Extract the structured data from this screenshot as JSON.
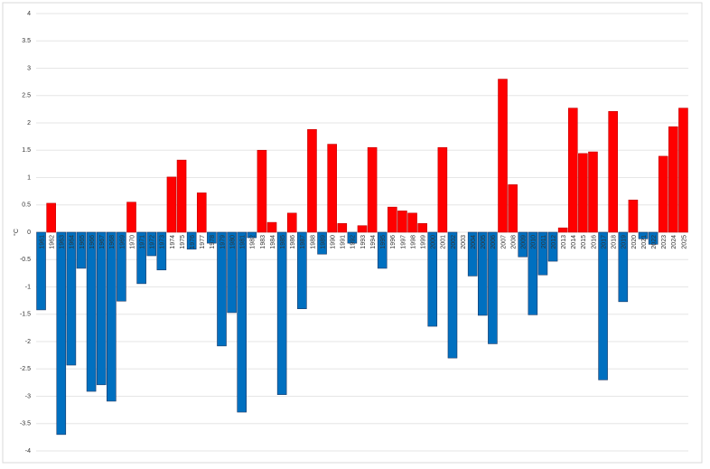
{
  "chart_data": {
    "type": "bar",
    "y_label": "°C",
    "categories": [
      "1961",
      "1962",
      "1963",
      "1964",
      "1965",
      "1966",
      "1967",
      "1968",
      "1969",
      "1970",
      "1971",
      "1972",
      "1973",
      "1974",
      "1975",
      "1976",
      "1977",
      "1978",
      "1979",
      "1980",
      "1981",
      "1982",
      "1983",
      "1984",
      "1985",
      "1986",
      "1987",
      "1988",
      "1989",
      "1990",
      "1991",
      "1992",
      "1993",
      "1994",
      "1995",
      "1996",
      "1997",
      "1998",
      "1999",
      "2000",
      "2001",
      "2002",
      "2003",
      "2004",
      "2005",
      "2006",
      "2007",
      "2008",
      "2009",
      "2010",
      "2011",
      "2012",
      "2013",
      "2014",
      "2015",
      "2016",
      "2017",
      "2018",
      "2019",
      "2020",
      "2021",
      "2022",
      "2023",
      "2024",
      "2025"
    ],
    "values": [
      -1.42,
      0.53,
      -3.7,
      -2.43,
      -0.66,
      -2.91,
      -2.79,
      -3.09,
      -1.26,
      0.55,
      -0.94,
      -0.43,
      -0.69,
      1.01,
      1.32,
      -0.31,
      0.72,
      -0.2,
      -2.08,
      -1.47,
      -3.29,
      -0.1,
      1.5,
      0.18,
      -2.97,
      0.35,
      -1.4,
      1.88,
      -0.4,
      1.61,
      0.16,
      -0.2,
      0.12,
      1.55,
      -0.66,
      0.46,
      0.39,
      0.35,
      0.16,
      -1.72,
      1.55,
      -2.3,
      null,
      -0.8,
      -1.52,
      -2.04,
      2.8,
      0.87,
      -0.45,
      -1.51,
      -0.78,
      -0.53,
      0.08,
      2.27,
      1.44,
      1.47,
      -2.7,
      2.21,
      -1.27,
      0.59,
      -0.12,
      -0.22,
      1.39,
      1.93,
      2.27
    ],
    "positive_color": "#ff0000",
    "negative_color": "#0070c0",
    "ylim": [
      -4,
      4
    ],
    "yticks": [
      -4,
      -3.5,
      -3,
      -2.5,
      -2,
      -1.5,
      -1,
      -0.5,
      0,
      0.5,
      1,
      1.5,
      2,
      2.5,
      3,
      3.5,
      4
    ],
    "grid": true
  }
}
